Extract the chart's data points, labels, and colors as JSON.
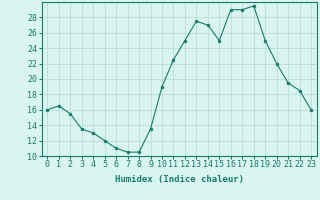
{
  "x": [
    0,
    1,
    2,
    3,
    4,
    5,
    6,
    7,
    8,
    9,
    10,
    11,
    12,
    13,
    14,
    15,
    16,
    17,
    18,
    19,
    20,
    21,
    22,
    23
  ],
  "y": [
    16,
    16.5,
    15.5,
    13.5,
    13,
    12,
    11,
    10.5,
    10.5,
    13.5,
    19,
    22.5,
    25,
    27.5,
    27,
    25,
    29,
    29,
    29.5,
    25,
    22,
    19.5,
    18.5,
    16
  ],
  "line_color": "#1a7a6e",
  "marker": "o",
  "marker_size": 2,
  "bg_color": "#d8f5f0",
  "grid_color": "#b8d8d0",
  "xlabel": "Humidex (Indice chaleur)",
  "ylim": [
    10,
    30
  ],
  "xlim": [
    -0.5,
    23.5
  ],
  "yticks": [
    10,
    12,
    14,
    16,
    18,
    20,
    22,
    24,
    26,
    28
  ],
  "xticks": [
    0,
    1,
    2,
    3,
    4,
    5,
    6,
    7,
    8,
    9,
    10,
    11,
    12,
    13,
    14,
    15,
    16,
    17,
    18,
    19,
    20,
    21,
    22,
    23
  ],
  "xtick_labels": [
    "0",
    "1",
    "2",
    "3",
    "4",
    "5",
    "6",
    "7",
    "8",
    "9",
    "10",
    "11",
    "12",
    "13",
    "14",
    "15",
    "16",
    "17",
    "18",
    "19",
    "20",
    "21",
    "22",
    "23"
  ],
  "tick_color": "#1a7a6e",
  "label_fontsize": 6.5,
  "tick_fontsize": 6
}
